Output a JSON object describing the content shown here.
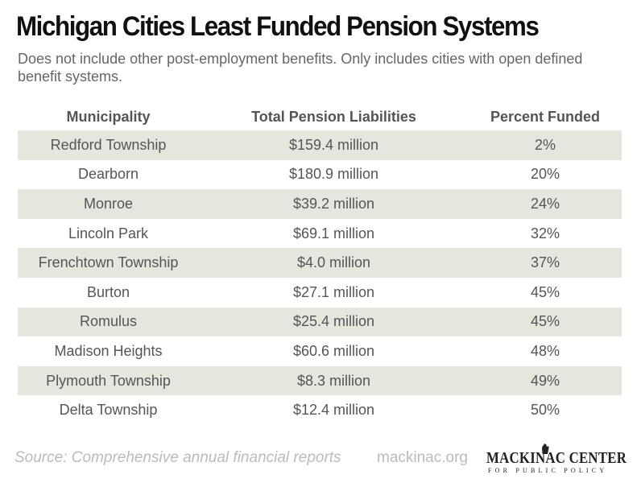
{
  "title": "Michigan Cities Least Funded Pension Systems",
  "subtitle": "Does not include other post-employment benefits. Only includes cities with open defined benefit systems.",
  "chart_data": {
    "type": "table",
    "columns": [
      "Municipality",
      "Total Pension Liabilities",
      "Percent Funded"
    ],
    "rows": [
      [
        "Redford Township",
        "$159.4 million",
        "2%"
      ],
      [
        "Dearborn",
        "$180.9 million",
        "20%"
      ],
      [
        "Monroe",
        "$39.2 million",
        "24%"
      ],
      [
        "Lincoln Park",
        "$69.1 million",
        "32%"
      ],
      [
        "Frenchtown Township",
        "$4.0 million",
        "37%"
      ],
      [
        "Burton",
        "$27.1 million",
        "45%"
      ],
      [
        "Romulus",
        "$25.4 million",
        "45%"
      ],
      [
        "Madison Heights",
        "$60.6 million",
        "48%"
      ],
      [
        "Plymouth Township",
        "$8.3 million",
        "49%"
      ],
      [
        "Delta Township",
        "$12.4 million",
        "50%"
      ]
    ]
  },
  "footer": {
    "source": "Source: Comprehensive annual financial reports",
    "url": "mackinac.org",
    "logo_main": "MACKINAC CENTER",
    "logo_sub": "FOR PUBLIC POLICY"
  },
  "colors": {
    "stripe": "#e5e7de",
    "title": "#111111",
    "text": "#555555",
    "footer": "#bbbbbb"
  }
}
